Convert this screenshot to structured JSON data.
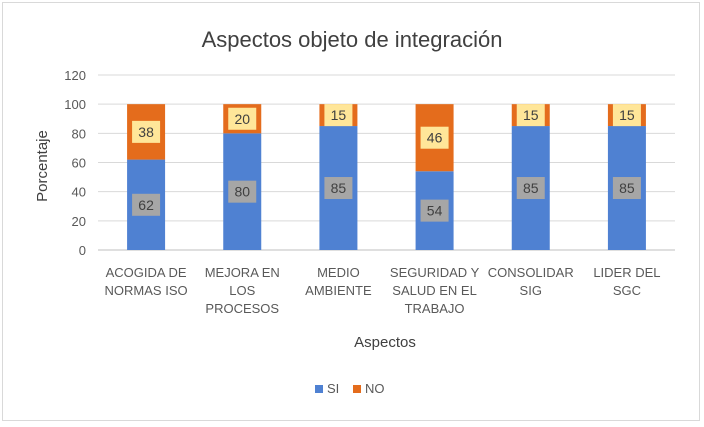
{
  "chart_data": {
    "type": "bar",
    "stacked": true,
    "title": "Aspectos objeto de integración",
    "xlabel": "Aspectos",
    "ylabel": "Porcentaje",
    "ylim": [
      0,
      120
    ],
    "yticks": [
      0,
      20,
      40,
      60,
      80,
      100,
      120
    ],
    "grid": true,
    "legend_position": "bottom",
    "categories": [
      [
        "ACOGIDA DE",
        "NORMAS ISO"
      ],
      [
        "MEJORA EN",
        "LOS",
        "PROCESOS"
      ],
      [
        "MEDIO",
        "AMBIENTE"
      ],
      [
        "SEGURIDAD Y",
        "SALUD EN EL",
        "TRABAJO"
      ],
      [
        "CONSOLIDAR",
        "SIG"
      ],
      [
        "LIDER DEL",
        "SGC"
      ]
    ],
    "series": [
      {
        "name": "SI",
        "color": "#4f81d2",
        "label_bg": "#a6a6a6",
        "values": [
          62,
          80,
          85,
          54,
          85,
          85
        ]
      },
      {
        "name": "NO",
        "color": "#e46c1c",
        "label_bg": "#ffe699",
        "values": [
          38,
          20,
          15,
          46,
          15,
          15
        ]
      }
    ]
  }
}
